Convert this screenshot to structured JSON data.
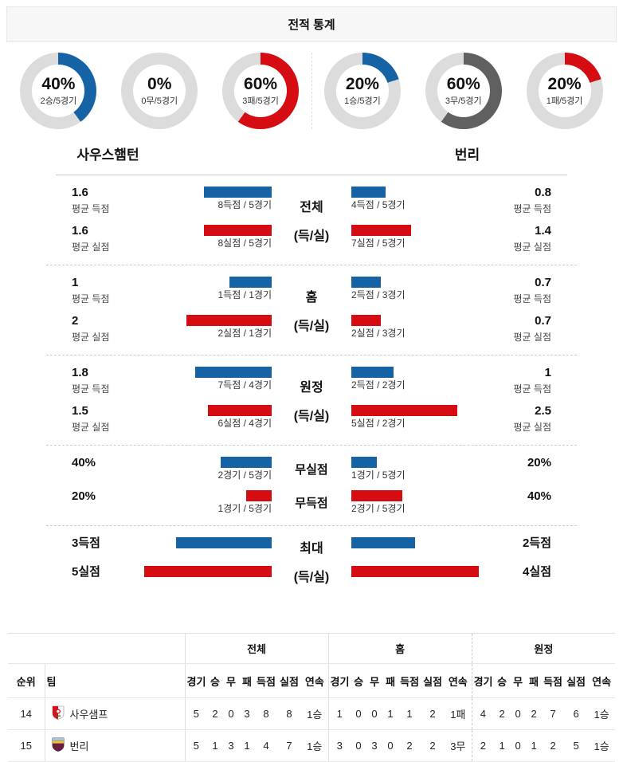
{
  "header": {
    "title": "전적 통계"
  },
  "teams": {
    "home": "사우스햄턴",
    "away": "번리"
  },
  "colors": {
    "blue": "#1563a5",
    "red": "#d60c13",
    "gray": "#dcdcdc",
    "darkgray": "#606060",
    "track": "#dcdcdc"
  },
  "donuts": {
    "left": [
      {
        "pct": 40,
        "label": "2승/5경기",
        "color": "blue"
      },
      {
        "pct": 0,
        "label": "0무/5경기",
        "color": "gray"
      },
      {
        "pct": 60,
        "label": "3패/5경기",
        "color": "red"
      }
    ],
    "right": [
      {
        "pct": 20,
        "label": "1승/5경기",
        "color": "blue"
      },
      {
        "pct": 60,
        "label": "3무/5경기",
        "color": "darkgray"
      },
      {
        "pct": 20,
        "label": "1패/5경기",
        "color": "red"
      }
    ]
  },
  "blocks": [
    {
      "center": [
        "전체",
        "(득/실)"
      ],
      "scale": 53.3,
      "rows": [
        {
          "left": {
            "value": "1.6",
            "sub": "평균 득점"
          },
          "lbar": {
            "color": "blue",
            "v": 1.6,
            "caption": "8득점 / 5경기"
          },
          "rbar": {
            "color": "blue",
            "v": 0.8,
            "caption": "4득점 / 5경기"
          },
          "right": {
            "value": "0.8",
            "sub": "평균 득점"
          }
        },
        {
          "left": {
            "value": "1.6",
            "sub": "평균 실점"
          },
          "lbar": {
            "color": "red",
            "v": 1.6,
            "caption": "8실점 / 5경기"
          },
          "rbar": {
            "color": "red",
            "v": 1.4,
            "caption": "7실점 / 5경기"
          },
          "right": {
            "value": "1.4",
            "sub": "평균 실점"
          }
        }
      ]
    },
    {
      "center": [
        "홈",
        "(득/실)"
      ],
      "scale": 53.3,
      "rows": [
        {
          "left": {
            "value": "1",
            "sub": "평균 득점"
          },
          "lbar": {
            "color": "blue",
            "v": 1,
            "caption": "1득점 / 1경기"
          },
          "rbar": {
            "color": "blue",
            "v": 0.7,
            "caption": "2득점 / 3경기"
          },
          "right": {
            "value": "0.7",
            "sub": "평균 득점"
          }
        },
        {
          "left": {
            "value": "2",
            "sub": "평균 실점"
          },
          "lbar": {
            "color": "red",
            "v": 2,
            "caption": "2실점 / 1경기"
          },
          "rbar": {
            "color": "red",
            "v": 0.7,
            "caption": "2실점 / 3경기"
          },
          "right": {
            "value": "0.7",
            "sub": "평균 실점"
          }
        }
      ]
    },
    {
      "center": [
        "원정",
        "(득/실)"
      ],
      "scale": 53.3,
      "rows": [
        {
          "left": {
            "value": "1.8",
            "sub": "평균 득점"
          },
          "lbar": {
            "color": "blue",
            "v": 1.8,
            "caption": "7득점 / 4경기"
          },
          "rbar": {
            "color": "blue",
            "v": 1,
            "caption": "2득점 / 2경기"
          },
          "right": {
            "value": "1",
            "sub": "평균 득점"
          }
        },
        {
          "left": {
            "value": "1.5",
            "sub": "평균 실점"
          },
          "lbar": {
            "color": "red",
            "v": 1.5,
            "caption": "6실점 / 4경기"
          },
          "rbar": {
            "color": "red",
            "v": 2.5,
            "caption": "5실점 / 2경기"
          },
          "right": {
            "value": "2.5",
            "sub": "평균 실점"
          }
        }
      ]
    },
    {
      "scale": 1.6,
      "rows": [
        {
          "left": {
            "value": "40%"
          },
          "lbar": {
            "color": "blue",
            "v": 40,
            "caption": "2경기 / 5경기"
          },
          "center": "무실점",
          "rbar": {
            "color": "blue",
            "v": 20,
            "caption": "1경기 / 5경기"
          },
          "right": {
            "value": "20%"
          }
        },
        {
          "left": {
            "value": "20%"
          },
          "lbar": {
            "color": "red",
            "v": 20,
            "caption": "1경기 / 5경기"
          },
          "center": "무득점",
          "rbar": {
            "color": "red",
            "v": 40,
            "caption": "2경기 / 5경기"
          },
          "right": {
            "value": "40%"
          }
        }
      ]
    },
    {
      "center": [
        "최대",
        "(득/실)"
      ],
      "scale": 40,
      "max": 160,
      "rows": [
        {
          "left": {
            "value": "3득점"
          },
          "lbar": {
            "color": "blue",
            "v": 3
          },
          "rbar": {
            "color": "blue",
            "v": 2
          },
          "right": {
            "value": "2득점"
          }
        },
        {
          "left": {
            "value": "5실점"
          },
          "lbar": {
            "color": "red",
            "v": 5
          },
          "rbar": {
            "color": "red",
            "v": 4
          },
          "right": {
            "value": "4실점"
          }
        }
      ]
    }
  ],
  "table": {
    "group_headers": [
      "전체",
      "홈",
      "원정"
    ],
    "rank_header": "순위",
    "team_header": "팀",
    "stat_headers": [
      "경기",
      "승",
      "무",
      "패",
      "득점",
      "실점",
      "연속"
    ],
    "rows": [
      {
        "rank": "14",
        "team": "사우샘프",
        "crest": "southampton",
        "all": [
          "5",
          "2",
          "0",
          "3",
          "8",
          "8",
          "1승"
        ],
        "home": [
          "1",
          "0",
          "0",
          "1",
          "1",
          "2",
          "1패"
        ],
        "away": [
          "4",
          "2",
          "0",
          "2",
          "7",
          "6",
          "1승"
        ]
      },
      {
        "rank": "15",
        "team": "번리",
        "crest": "burnley",
        "all": [
          "5",
          "1",
          "3",
          "1",
          "4",
          "7",
          "1승"
        ],
        "home": [
          "3",
          "0",
          "3",
          "0",
          "2",
          "2",
          "3무"
        ],
        "away": [
          "2",
          "1",
          "0",
          "1",
          "2",
          "5",
          "1승"
        ]
      }
    ]
  },
  "chart_data": [
    {
      "type": "pie",
      "title": "사우스햄턴 최근 5경기 승/무/패",
      "slices": [
        {
          "label": "승",
          "pct": 40,
          "detail": "2승/5경기"
        },
        {
          "label": "무",
          "pct": 0,
          "detail": "0무/5경기"
        },
        {
          "label": "패",
          "pct": 60,
          "detail": "3패/5경기"
        }
      ]
    },
    {
      "type": "pie",
      "title": "번리 최근 5경기 승/무/패",
      "slices": [
        {
          "label": "승",
          "pct": 20,
          "detail": "1승/5경기"
        },
        {
          "label": "무",
          "pct": 60,
          "detail": "3무/5경기"
        },
        {
          "label": "패",
          "pct": 20,
          "detail": "1패/5경기"
        }
      ]
    },
    {
      "type": "bar",
      "title": "전체 (득/실)",
      "categories": [
        "평균 득점",
        "평균 실점"
      ],
      "series": [
        {
          "name": "사우스햄턴",
          "values": [
            1.6,
            1.6
          ],
          "detail": [
            "8득점 / 5경기",
            "8실점 / 5경기"
          ]
        },
        {
          "name": "번리",
          "values": [
            0.8,
            1.4
          ],
          "detail": [
            "4득점 / 5경기",
            "7실점 / 5경기"
          ]
        }
      ]
    },
    {
      "type": "bar",
      "title": "홈 (득/실)",
      "categories": [
        "평균 득점",
        "평균 실점"
      ],
      "series": [
        {
          "name": "사우스햄턴",
          "values": [
            1,
            2
          ],
          "detail": [
            "1득점 / 1경기",
            "2실점 / 1경기"
          ]
        },
        {
          "name": "번리",
          "values": [
            0.7,
            0.7
          ],
          "detail": [
            "2득점 / 3경기",
            "2실점 / 3경기"
          ]
        }
      ]
    },
    {
      "type": "bar",
      "title": "원정 (득/실)",
      "categories": [
        "평균 득점",
        "평균 실점"
      ],
      "series": [
        {
          "name": "사우스햄턴",
          "values": [
            1.8,
            1.5
          ],
          "detail": [
            "7득점 / 4경기",
            "6실점 / 4경기"
          ]
        },
        {
          "name": "번리",
          "values": [
            1,
            2.5
          ],
          "detail": [
            "2득점 / 2경기",
            "5실점 / 2경기"
          ]
        }
      ]
    },
    {
      "type": "bar",
      "title": "무실점 / 무득점 (%)",
      "categories": [
        "무실점",
        "무득점"
      ],
      "series": [
        {
          "name": "사우스햄턴",
          "values": [
            40,
            20
          ],
          "detail": [
            "2경기 / 5경기",
            "1경기 / 5경기"
          ]
        },
        {
          "name": "번리",
          "values": [
            20,
            40
          ],
          "detail": [
            "1경기 / 5경기",
            "2경기 / 5경기"
          ]
        }
      ]
    },
    {
      "type": "bar",
      "title": "최대 (득/실)",
      "categories": [
        "최대 득점",
        "최대 실점"
      ],
      "series": [
        {
          "name": "사우스햄턴",
          "values": [
            3,
            5
          ],
          "labels": [
            "3득점",
            "5실점"
          ]
        },
        {
          "name": "번리",
          "values": [
            2,
            4
          ],
          "labels": [
            "2득점",
            "4실점"
          ]
        }
      ]
    }
  ]
}
